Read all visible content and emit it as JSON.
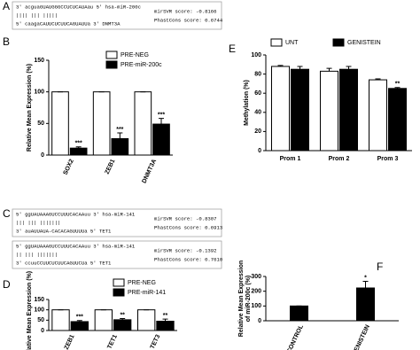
{
  "alignments": [
    {
      "panel": "A",
      "boxes": [
        {
          "lines": [
            "3' acguaGUAUGGGCCUCUCAUAau 5' hsa-miR-200c",
            "       |||| ||| |||||",
            "5' caagaCAUUCUCUUCAGUAUUa 3' DNMT3A"
          ],
          "scores": [
            "mirSVR score: -0.8166",
            "PhastCons score: 0.6744"
          ]
        }
      ]
    },
    {
      "panel": "C",
      "boxes": [
        {
          "lines": [
            "5' ggUAUAAAGUCCUUUCACAAuu 3' hsa-miR-141",
            "    |||  |||  |||||||",
            "3' auAUUAUA-CACACAGUUUUa 5' TET1"
          ],
          "scores": [
            "mirSVR score: -0.8307",
            "PhastCons score: 0.6913"
          ]
        },
        {
          "lines": [
            "5' ggUAUAAAGUCCUUUCACAAuu 3' hsa-miR-141",
            "     ||  ||| |||||||",
            "3' ccuuCCUUCUCUUCAGUUCUa 5' TET1"
          ],
          "scores": [
            "mirSVR score: -0.1392",
            "PhastCons score: 0.7610"
          ]
        }
      ]
    }
  ],
  "chart_data": [
    {
      "type": "bar",
      "panel": "B",
      "ylabel": [
        "Relative Mean Expression (%)"
      ],
      "categories": [
        "SOX2",
        "ZEB1",
        "DNMT3A"
      ],
      "ylim": [
        0,
        150
      ],
      "yticks": [
        0,
        50,
        100,
        150
      ],
      "legend": "top-right",
      "series": [
        {
          "name": "PRE-NEG",
          "color": "#ffffff",
          "values": [
            100,
            100,
            100
          ],
          "errors": [
            0,
            0,
            0
          ]
        },
        {
          "name": "PRE-miR-200c",
          "color": "#000000",
          "values": [
            11,
            26,
            49
          ],
          "errors": [
            2,
            9,
            9
          ],
          "significance": [
            "***",
            "***",
            "***"
          ]
        }
      ]
    },
    {
      "type": "bar",
      "panel": "E",
      "ylabel": [
        "Methylation (%)"
      ],
      "categories": [
        "Prom 1",
        "Prom 2",
        "Prom 3"
      ],
      "ylim": [
        0,
        100
      ],
      "yticks": [
        0,
        20,
        40,
        60,
        80,
        100
      ],
      "legend": "top",
      "series": [
        {
          "name": "UNT",
          "color": "#ffffff",
          "values": [
            88,
            83,
            74
          ],
          "errors": [
            1,
            3,
            1
          ]
        },
        {
          "name": "GENISTEIN",
          "color": "#000000",
          "values": [
            85,
            85,
            65
          ],
          "errors": [
            3,
            3,
            1
          ],
          "significance": [
            null,
            null,
            "**"
          ]
        }
      ]
    },
    {
      "type": "bar",
      "panel": "D",
      "ylabel": [
        "Relative Mean Expression (%)"
      ],
      "categories": [
        "ZEB1",
        "TET1",
        "TET3"
      ],
      "ylim": [
        0,
        150
      ],
      "yticks": [
        0,
        50,
        100,
        150
      ],
      "legend": "top-right",
      "series": [
        {
          "name": "PRE-NEG",
          "color": "#ffffff",
          "values": [
            100,
            100,
            100
          ],
          "errors": [
            0,
            0,
            0
          ]
        },
        {
          "name": "PRE-miR-141",
          "color": "#000000",
          "values": [
            43,
            52,
            45
          ],
          "errors": [
            5,
            6,
            10
          ],
          "significance": [
            "***",
            "**",
            "**"
          ]
        }
      ]
    },
    {
      "type": "bar",
      "panel": "F",
      "ylabel": [
        "Relative Mean Expression",
        "of miR-200c (%)"
      ],
      "categories": [
        "CONTROL",
        "GENISTEIN"
      ],
      "ylim": [
        0,
        300
      ],
      "yticks": [
        0,
        100,
        200,
        300
      ],
      "series": [
        {
          "color": "#000000",
          "values": [
            100,
            222
          ],
          "errors": [
            0,
            45
          ],
          "significance": [
            null,
            "*"
          ]
        }
      ]
    }
  ]
}
